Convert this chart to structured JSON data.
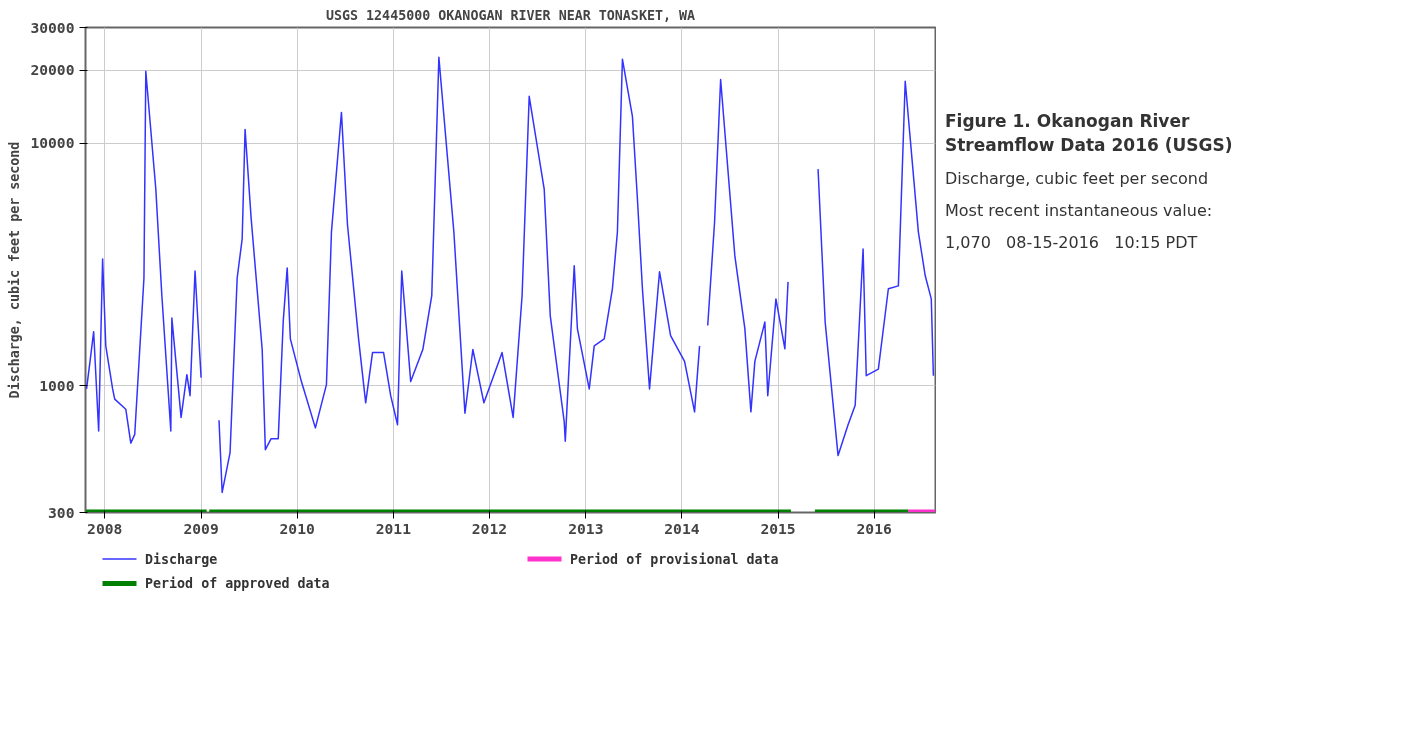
{
  "chart_data": {
    "type": "line",
    "title": "USGS 12445000 OKANOGAN RIVER NEAR TONASKET, WA",
    "ylabel": "Discharge, cubic feet per second",
    "annotations": [
      "Figure 1. Okanogan River Streamflow Data 2016 (USGS)",
      "Discharge, cubic feet per second",
      "Most recent instantaneous value:",
      "1,070   08-15-2016   10:15 PDT"
    ],
    "log": "y",
    "grid": true,
    "legend": "bottom",
    "xlim": [
      "2007-10-20",
      "2016-08-21"
    ],
    "xticks": [
      {
        "value": "2008-01-01",
        "label": "2008"
      },
      {
        "value": "2009-01-01",
        "label": "2009"
      },
      {
        "value": "2010-01-01",
        "label": "2010"
      },
      {
        "value": "2011-01-01",
        "label": "2011"
      },
      {
        "value": "2012-01-01",
        "label": "2012"
      },
      {
        "value": "2013-01-01",
        "label": "2013"
      },
      {
        "value": "2014-01-01",
        "label": "2014"
      },
      {
        "value": "2015-01-01",
        "label": "2015"
      },
      {
        "value": "2016-01-01",
        "label": "2016"
      }
    ],
    "ylim": [
      300,
      30000
    ],
    "yticks": [
      300,
      1000,
      10000,
      20000,
      30000
    ],
    "series": [
      {
        "name": "Discharge",
        "color": "#3333ff",
        "x": [
          "2007-10-24",
          "2007-11-05",
          "2007-11-20",
          "2007-12-09",
          "2007-12-24",
          "2008-01-05",
          "2008-01-31",
          "2008-02-08",
          "2008-03-21",
          "2008-04-09",
          "2008-04-24",
          "2008-05-13",
          "2008-05-29",
          "2008-06-05",
          "2008-07-13",
          "2008-08-05",
          "2008-09-08",
          "2008-09-12",
          "2008-10-17",
          "2008-11-08",
          "2008-11-20",
          "2008-12-09",
          "2009-01-01",
          "2009-02-01",
          "2009-03-10",
          "2009-03-22",
          "2009-04-21",
          "2009-05-18",
          "2009-06-06",
          "2009-06-17",
          "2009-07-10",
          "2009-08-21",
          "2009-09-02",
          "2009-09-24",
          "2009-10-21",
          "2009-11-09",
          "2009-11-24",
          "2009-12-06",
          "2010-01-17",
          "2010-03-11",
          "2010-04-22",
          "2010-05-11",
          "2010-06-18",
          "2010-07-11",
          "2010-08-22",
          "2010-09-18",
          "2010-10-14",
          "2010-11-25",
          "2010-12-22",
          "2011-01-17",
          "2011-02-02",
          "2011-03-08",
          "2011-04-23",
          "2011-05-27",
          "2011-06-23",
          "2011-08-19",
          "2011-09-30",
          "2011-10-30",
          "2011-12-11",
          "2012-02-18",
          "2012-03-31",
          "2012-05-04",
          "2012-05-31",
          "2012-07-27",
          "2012-08-19",
          "2012-10-11",
          "2012-10-15",
          "2012-11-18",
          "2012-11-30",
          "2013-01-14",
          "2013-02-02",
          "2013-03-12",
          "2013-04-12",
          "2013-05-01",
          "2013-05-20",
          "2013-06-27",
          "2013-07-16",
          "2013-08-04",
          "2013-08-31",
          "2013-10-08",
          "2013-11-19",
          "2014-01-11",
          "2014-02-18",
          "2014-03-09",
          "2014-03-25",
          "2014-04-09",
          "2014-05-05",
          "2014-05-28",
          "2014-07-21",
          "2014-08-28",
          "2014-09-20",
          "2014-10-05",
          "2014-11-12",
          "2014-11-23",
          "2014-12-24",
          "2015-01-27",
          "2015-02-08",
          "2015-04-01",
          "2015-06-02",
          "2015-06-29",
          "2015-08-17",
          "2015-09-24",
          "2015-10-21",
          "2015-11-20",
          "2015-12-02",
          "2016-01-17",
          "2016-02-24",
          "2016-04-02",
          "2016-04-28",
          "2016-06-17",
          "2016-07-13",
          "2016-08-05",
          "2016-08-13"
        ],
        "values": [
          970,
          1230,
          1670,
          650,
          3330,
          1460,
          970,
          880,
          800,
          580,
          630,
          1410,
          2780,
          19800,
          6470,
          2350,
          650,
          1900,
          740,
          1110,
          910,
          2970,
          1080,
          null,
          720,
          363,
          530,
          2780,
          4030,
          11400,
          4910,
          1410,
          545,
          605,
          605,
          1850,
          3060,
          1560,
          1040,
          670,
          1010,
          4300,
          13400,
          4600,
          1560,
          850,
          1370,
          1370,
          910,
          690,
          2970,
          1040,
          1410,
          2350,
          22600,
          4300,
          770,
          1410,
          850,
          1370,
          740,
          2350,
          15600,
          6470,
          1940,
          710,
          590,
          3120,
          1720,
          970,
          1460,
          1560,
          2510,
          4300,
          22200,
          12900,
          5890,
          2510,
          970,
          2950,
          1610,
          1260,
          780,
          1460,
          null,
          1770,
          4730,
          18300,
          3430,
          1720,
          780,
          1260,
          1830,
          910,
          2280,
          1420,
          2680,
          null,
          7820,
          1830,
          515,
          690,
          830,
          3660,
          1100,
          1170,
          2510,
          2580,
          18000,
          4300,
          2840,
          2280,
          1100
        ]
      },
      {
        "name": "Period of provisional data",
        "color": "#ff33cc",
        "x": [
          "2016-05-09",
          "2016-08-21"
        ],
        "values": [
          300,
          300
        ]
      },
      {
        "name": "Period of approved data",
        "color": "#008000",
        "x": [
          "2007-10-20",
          "2009-01-22",
          "2009-01-27",
          "2009-02-01",
          "2015-02-19",
          "2015-04-01",
          "2015-05-21",
          "2016-05-09"
        ],
        "values": [
          300,
          300,
          null,
          300,
          300,
          null,
          300,
          300
        ]
      }
    ]
  }
}
